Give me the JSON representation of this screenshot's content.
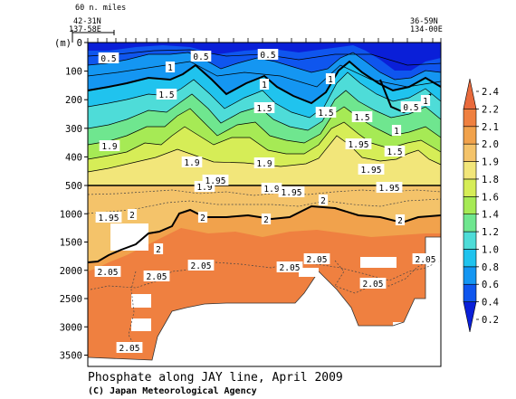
{
  "chart_data": {
    "type": "heatmap",
    "title": "Phosphate along JAY line, April 2009",
    "ylabel": "(m)",
    "yticks_upper": [
      0,
      100,
      200,
      300,
      400,
      500
    ],
    "yticks_lower": [
      1000,
      1500,
      2000,
      2500,
      3000,
      3500
    ],
    "ylim": [
      0,
      3700
    ],
    "y_axis_break": 500,
    "left_station": [
      "42-31N",
      "137-58E"
    ],
    "right_station": [
      "36-59N",
      "134-00E"
    ],
    "scale_bar": "60 n. miles",
    "colorbar": {
      "levels": [
        0.2,
        0.4,
        0.6,
        0.8,
        1.0,
        1.2,
        1.4,
        1.6,
        1.8,
        1.9,
        2.0,
        2.1,
        2.2,
        2.4
      ],
      "colors": [
        "#0a1fd8",
        "#0f56ee",
        "#1496f2",
        "#20c3ee",
        "#4edcd8",
        "#6fe68f",
        "#a6ea55",
        "#d6ed57",
        "#f2e67a",
        "#f4c36a",
        "#f1a24c",
        "#ef8040",
        "#e96a3c"
      ]
    },
    "contour_labels_upper": [
      "0.5",
      "0.5",
      "0.5",
      "0.5",
      "1",
      "1",
      "1",
      "1",
      "1",
      "1.5",
      "1.5",
      "1.5",
      "1.5",
      "1.5",
      "1.9",
      "1.9",
      "1.9",
      "1.95",
      "1.95"
    ],
    "contour_labels_lower": [
      "1.9",
      "1.9",
      "1.95",
      "1.95",
      "1.95",
      "1.95",
      "2",
      "2",
      "2",
      "2",
      "2",
      "2",
      "2.05",
      "2.05",
      "2.05",
      "2.05",
      "2.05",
      "2.05",
      "2.05",
      "2.05"
    ]
  },
  "caption": {
    "title": "Phosphate along JAY line, April 2009",
    "credit": "(C) Japan Meteorological Agency"
  }
}
